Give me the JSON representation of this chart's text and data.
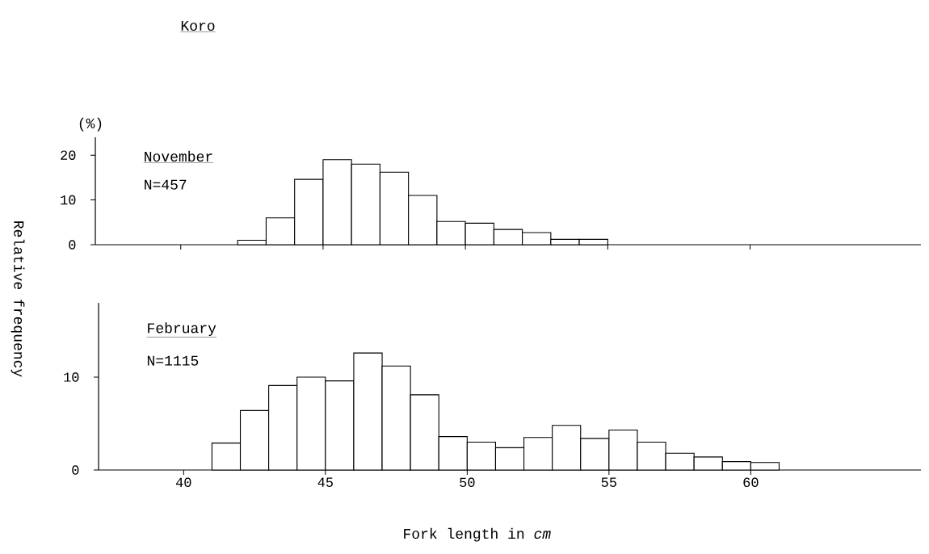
{
  "chart_data": [
    {
      "type": "histogram",
      "title": "Koro",
      "ylabel": "(%)",
      "annotations": [
        "November",
        "N=457"
      ],
      "bins": [
        42,
        43,
        44,
        45,
        46,
        47,
        48,
        49,
        50,
        51,
        52,
        53,
        54,
        55
      ],
      "values": [
        1.0,
        6.0,
        14.6,
        19.0,
        18.0,
        16.2,
        11.0,
        5.2,
        4.8,
        3.4,
        2.7,
        1.2,
        1.2
      ],
      "xlim": [
        37,
        66
      ],
      "ylim": [
        0,
        24
      ],
      "xticks": [
        40,
        45,
        50,
        55,
        60
      ],
      "yticks": [
        0,
        10,
        20
      ],
      "tick_labels": "y"
    },
    {
      "type": "histogram",
      "ylabel": "Relative frequency",
      "xlabel": "Fork length in *cm*",
      "annotations": [
        "February",
        "N=1115"
      ],
      "bins": [
        41,
        42,
        43,
        44,
        45,
        46,
        47,
        48,
        49,
        50,
        51,
        52,
        53,
        54,
        55,
        56,
        57,
        58,
        59,
        60,
        61
      ],
      "values": [
        2.9,
        6.4,
        9.1,
        10.0,
        9.6,
        12.6,
        11.2,
        8.1,
        3.6,
        3.0,
        2.4,
        3.5,
        4.8,
        3.4,
        4.3,
        3.0,
        1.8,
        1.4,
        0.9,
        0.8
      ],
      "xlim": [
        37,
        66
      ],
      "ylim": [
        0,
        18
      ],
      "xticks": [
        40,
        45,
        50,
        55,
        60
      ],
      "yticks": [
        0,
        10
      ]
    }
  ]
}
